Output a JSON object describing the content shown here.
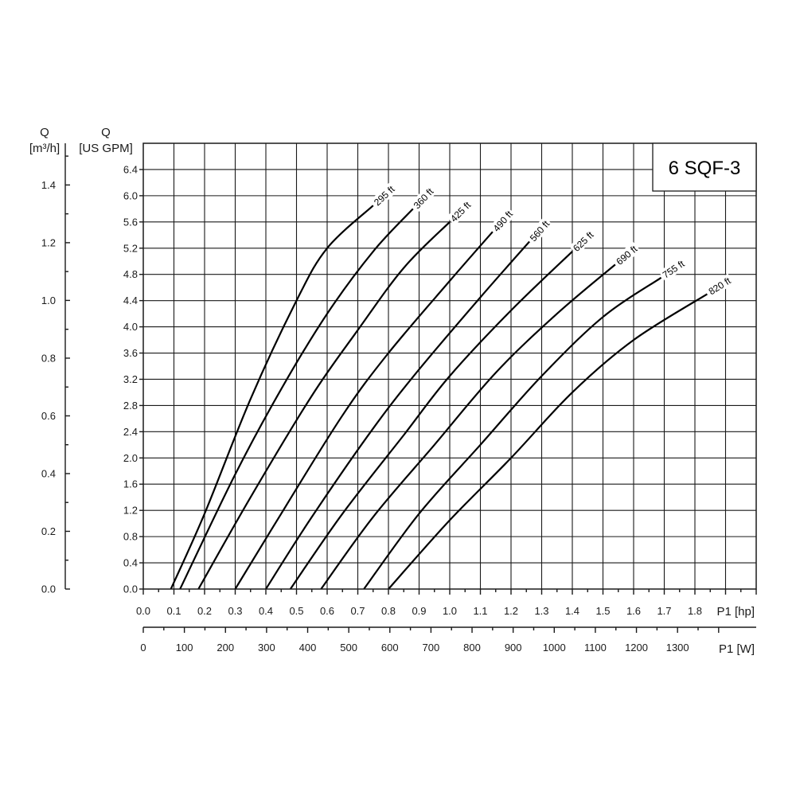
{
  "chart_data": {
    "type": "line",
    "title": "6 SQF-3",
    "ylabel_left_symbol": "Q",
    "ylabel_left_unit": "[m³/h]",
    "ylabel_right_symbol": "Q",
    "ylabel_right_unit": "[US GPM]",
    "xlabel_hp": "P1 [hp]",
    "xlabel_w": "P1 [W]",
    "xlim_hp": [
      0.0,
      2.0
    ],
    "ylim_gpm": [
      0.0,
      6.8
    ],
    "grid": true,
    "gpm_ticks": [
      "0.0",
      "0.4",
      "0.8",
      "1.2",
      "1.6",
      "2.0",
      "2.4",
      "2.8",
      "3.2",
      "3.6",
      "4.0",
      "4.4",
      "4.8",
      "5.2",
      "5.6",
      "6.0",
      "6.4"
    ],
    "m3h_ticks": [
      "0.0",
      "0.2",
      "0.4",
      "0.6",
      "0.8",
      "1.0",
      "1.2",
      "1.4"
    ],
    "hp_ticks": [
      "0.0",
      "0.1",
      "0.2",
      "0.3",
      "0.4",
      "0.5",
      "0.6",
      "0.7",
      "0.8",
      "0.9",
      "1.0",
      "1.1",
      "1.2",
      "1.3",
      "1.4",
      "1.5",
      "1.6",
      "1.7",
      "1.8"
    ],
    "w_ticks": [
      "0",
      "100",
      "200",
      "300",
      "400",
      "500",
      "600",
      "700",
      "800",
      "900",
      "1000",
      "1100",
      "1200",
      "1300"
    ],
    "series": [
      {
        "name": "295 ft",
        "x": [
          0.09,
          0.2,
          0.35,
          0.5,
          0.6,
          0.75
        ],
        "y": [
          0.0,
          1.15,
          2.9,
          4.4,
          5.2,
          5.85
        ]
      },
      {
        "name": "360 ft",
        "x": [
          0.12,
          0.3,
          0.45,
          0.6,
          0.75,
          0.88
        ],
        "y": [
          0.0,
          1.75,
          3.05,
          4.2,
          5.15,
          5.8
        ]
      },
      {
        "name": "425 ft",
        "x": [
          0.18,
          0.35,
          0.55,
          0.7,
          0.85,
          1.0
        ],
        "y": [
          0.0,
          1.4,
          2.95,
          3.95,
          4.9,
          5.6
        ]
      },
      {
        "name": "490 ft",
        "x": [
          0.3,
          0.45,
          0.65,
          0.8,
          1.0,
          1.14
        ],
        "y": [
          0.0,
          1.15,
          2.65,
          3.6,
          4.7,
          5.45
        ]
      },
      {
        "name": "560 ft",
        "x": [
          0.4,
          0.55,
          0.75,
          0.9,
          1.1,
          1.26
        ],
        "y": [
          0.0,
          1.1,
          2.45,
          3.35,
          4.45,
          5.3
        ]
      },
      {
        "name": "625 ft",
        "x": [
          0.48,
          0.65,
          0.85,
          1.0,
          1.2,
          1.4
        ],
        "y": [
          0.0,
          1.15,
          2.35,
          3.25,
          4.25,
          5.15
        ]
      },
      {
        "name": "690 ft",
        "x": [
          0.58,
          0.75,
          0.95,
          1.15,
          1.35,
          1.54
        ],
        "y": [
          0.0,
          1.1,
          2.2,
          3.3,
          4.2,
          4.95
        ]
      },
      {
        "name": "755 ft",
        "x": [
          0.72,
          0.9,
          1.1,
          1.3,
          1.5,
          1.69
        ],
        "y": [
          0.0,
          1.15,
          2.2,
          3.25,
          4.15,
          4.75
        ]
      },
      {
        "name": "820 ft",
        "x": [
          0.8,
          1.0,
          1.2,
          1.4,
          1.6,
          1.84
        ],
        "y": [
          0.0,
          1.05,
          2.0,
          3.0,
          3.8,
          4.5
        ]
      }
    ]
  }
}
